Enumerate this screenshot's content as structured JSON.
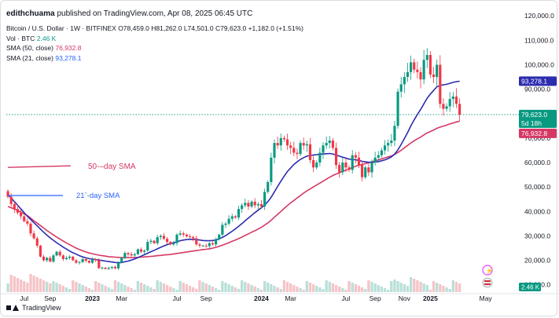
{
  "publisher": {
    "user": "edithchuama",
    "text": "published on TradingView.com, Apr 08, 2025 06:45 UTC"
  },
  "legend": {
    "symbol": "Bitcoin / U.S. Dollar · 1W · BITFINEX",
    "ohlc": "O78,459.0 H81,262.0 L74,501.0 C79,623.0 +1,182.0 (+1.51%)",
    "vol_label": "Vol · BTC",
    "vol_value": "2.46 K",
    "sma50_label": "SMA (50, close)",
    "sma50_value": "76,932.8",
    "sma21_label": "SMA (21, close)",
    "sma21_value": "93,278.1"
  },
  "footer": {
    "brand": "TradingView"
  },
  "colors": {
    "up": "#089981",
    "down": "#f23645",
    "sma50": "#d63864",
    "sma21": "#2c2cb0",
    "price_tag": "#089981"
  },
  "chart_data": {
    "type": "candlestick",
    "timeframe": "1W",
    "y_ticks": [
      10000,
      20000,
      30000,
      40000,
      50000,
      60000,
      70000,
      80000,
      90000,
      100000,
      110000,
      120000
    ],
    "y_tick_labels": [
      "10,000.0",
      "20,000.0",
      "30,000.0",
      "40,000.0",
      "50,000.0",
      "60,000.0",
      "70,000.0",
      "80,000.0",
      "90,000.0",
      "100,000.0",
      "110,000.0",
      "120,000.0"
    ],
    "ylim": [
      7000,
      122000
    ],
    "x_tick_labels": [
      {
        "label": "Jul",
        "t": 5
      },
      {
        "label": "Sep",
        "t": 13
      },
      {
        "label": "2023",
        "t": 26,
        "bold": true
      },
      {
        "label": "Mar",
        "t": 35
      },
      {
        "label": "Jul",
        "t": 52
      },
      {
        "label": "Sep",
        "t": 61
      },
      {
        "label": "2024",
        "t": 78,
        "bold": true
      },
      {
        "label": "Mar",
        "t": 87
      },
      {
        "label": "Jul",
        "t": 104
      },
      {
        "label": "Sep",
        "t": 113
      },
      {
        "label": "Nov",
        "t": 122
      },
      {
        "label": "2025",
        "t": 130,
        "bold": true
      },
      {
        "label": "May",
        "t": 147
      }
    ],
    "closes": [
      46000,
      43000,
      41000,
      39500,
      38000,
      36000,
      35000,
      31000,
      29000,
      26000,
      21500,
      20000,
      21000,
      19500,
      22000,
      23500,
      22000,
      20500,
      21000,
      21500,
      20000,
      19000,
      19300,
      20500,
      19800,
      19000,
      20500,
      20000,
      16800,
      17000,
      16500,
      16900,
      17300,
      16700,
      19000,
      21000,
      23000,
      22500,
      22000,
      22500,
      24500,
      23500,
      24000,
      27500,
      28000,
      27000,
      29500,
      30000,
      28800,
      27500,
      26500,
      27000,
      30500,
      31000,
      30500,
      29800,
      29500,
      29000,
      26500,
      26000,
      26000,
      25800,
      27000,
      26500,
      28500,
      30500,
      34500,
      35000,
      37000,
      38000,
      37500,
      41000,
      42500,
      43500,
      42000,
      44000,
      42500,
      43000,
      42000,
      48000,
      52000,
      62000,
      68000,
      67000,
      70000,
      69500,
      67000,
      66000,
      64000,
      63500,
      68000,
      67000,
      67500,
      61000,
      58000,
      60000,
      64000,
      67000,
      68000,
      69000,
      66000,
      59000,
      56000,
      60000,
      58000,
      57000,
      63000,
      62000,
      59000,
      54000,
      58000,
      56000,
      60000,
      62000,
      63000,
      65000,
      67000,
      68000,
      69000,
      75000,
      89000,
      92000,
      95000,
      97000,
      101000,
      98000,
      97000,
      94000,
      102000,
      104000,
      96000,
      95000,
      100000,
      84000,
      82000,
      83000,
      86000,
      87000,
      84000,
      79623
    ],
    "sma50": [
      42000,
      41500,
      41000,
      40400,
      39700,
      39000,
      38300,
      37300,
      36200,
      35200,
      34200,
      33200,
      32200,
      31300,
      30400,
      29500,
      28700,
      27900,
      27100,
      26400,
      25700,
      25000,
      24400,
      23900,
      23400,
      23000,
      22700,
      22400,
      22100,
      21900,
      21700,
      21500,
      21400,
      21300,
      21200,
      21100,
      21100,
      21100,
      21100,
      21100,
      21200,
      21300,
      21400,
      21500,
      21600,
      21700,
      21900,
      22000,
      22200,
      22300,
      22400,
      22600,
      22800,
      23000,
      23200,
      23400,
      23600,
      23800,
      24000,
      24200,
      24400,
      24500,
      24700,
      25000,
      25300,
      25700,
      26200,
      26700,
      27200,
      27800,
      28300,
      28900,
      29500,
      30200,
      30800,
      31500,
      32100,
      32800,
      33500,
      34400,
      35300,
      36400,
      37600,
      38800,
      40000,
      41200,
      42400,
      43500,
      44500,
      45500,
      46500,
      47500,
      48400,
      49200,
      50000,
      50800,
      51600,
      52400,
      53200,
      54000,
      54700,
      55300,
      55800,
      56400,
      56900,
      57400,
      58000,
      58500,
      58900,
      59200,
      59600,
      59900,
      60300,
      60700,
      61100,
      61500,
      61900,
      62300,
      62700,
      63300,
      64100,
      65000,
      66000,
      67000,
      68000,
      68900,
      69700,
      70400,
      71300,
      72100,
      72700,
      73300,
      74000,
      74500,
      74900,
      75300,
      75800,
      76200,
      76600,
      76932.8
    ],
    "sma21": [
      47000,
      45500,
      44000,
      42500,
      41000,
      39500,
      38000,
      36700,
      35400,
      34100,
      32800,
      31500,
      30300,
      29200,
      28200,
      27200,
      26300,
      25400,
      24600,
      23800,
      23100,
      22500,
      21900,
      21400,
      21000,
      20700,
      20500,
      20300,
      20100,
      19900,
      19700,
      19500,
      19300,
      19100,
      19000,
      19100,
      19400,
      19700,
      20100,
      20600,
      21100,
      21700,
      22300,
      22900,
      23500,
      24100,
      24700,
      25300,
      25900,
      26400,
      26800,
      27200,
      27600,
      28000,
      28300,
      28500,
      28600,
      28600,
      28500,
      28300,
      28100,
      28000,
      28000,
      28100,
      28400,
      28800,
      29400,
      30100,
      31000,
      31900,
      32900,
      33900,
      35000,
      36200,
      37300,
      38400,
      39500,
      40500,
      41500,
      42700,
      44000,
      45800,
      48000,
      50200,
      52400,
      54400,
      56300,
      57800,
      59200,
      60300,
      61300,
      62000,
      62600,
      62900,
      63100,
      63200,
      63400,
      63500,
      63600,
      63700,
      63500,
      63100,
      62600,
      62200,
      61800,
      61400,
      61300,
      61100,
      60900,
      60500,
      60300,
      60100,
      60100,
      60200,
      60400,
      60700,
      61100,
      61600,
      62300,
      63400,
      65200,
      67400,
      69800,
      72300,
      75000,
      77400,
      79700,
      81700,
      84000,
      86300,
      88000,
      89500,
      91000,
      91500,
      91800,
      92000,
      92400,
      92800,
      93100,
      93278.1
    ],
    "current_price": 79623,
    "price_tag": "79,623.0",
    "countdown_tag": "5d 18h",
    "sma21_tag": "93,278.1",
    "sma50_tag": "76,932.8",
    "volume_tag": "2.46 K",
    "annotations": [
      {
        "text": "50-–day SMA",
        "price": 58000
      },
      {
        "text": "21`-day SMA",
        "price": 46500
      }
    ]
  }
}
